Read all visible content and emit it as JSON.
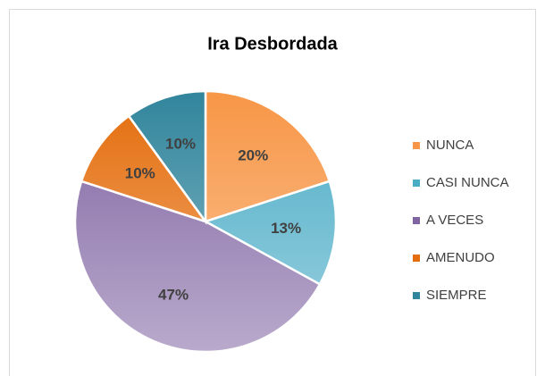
{
  "chart_data": {
    "type": "pie",
    "title": "Ira Desbordada",
    "categories": [
      "NUNCA",
      "CASI NUNCA",
      "A VECES",
      "AMENUDO",
      "SIEMPRE"
    ],
    "values": [
      20,
      13,
      47,
      10,
      10
    ],
    "value_labels": [
      "20%",
      "13%",
      "47%",
      "10%",
      "10%"
    ],
    "colors": [
      "#F79646",
      "#4BACC6",
      "#8064A2",
      "#E46C0A",
      "#31859C"
    ],
    "legend": "right"
  }
}
